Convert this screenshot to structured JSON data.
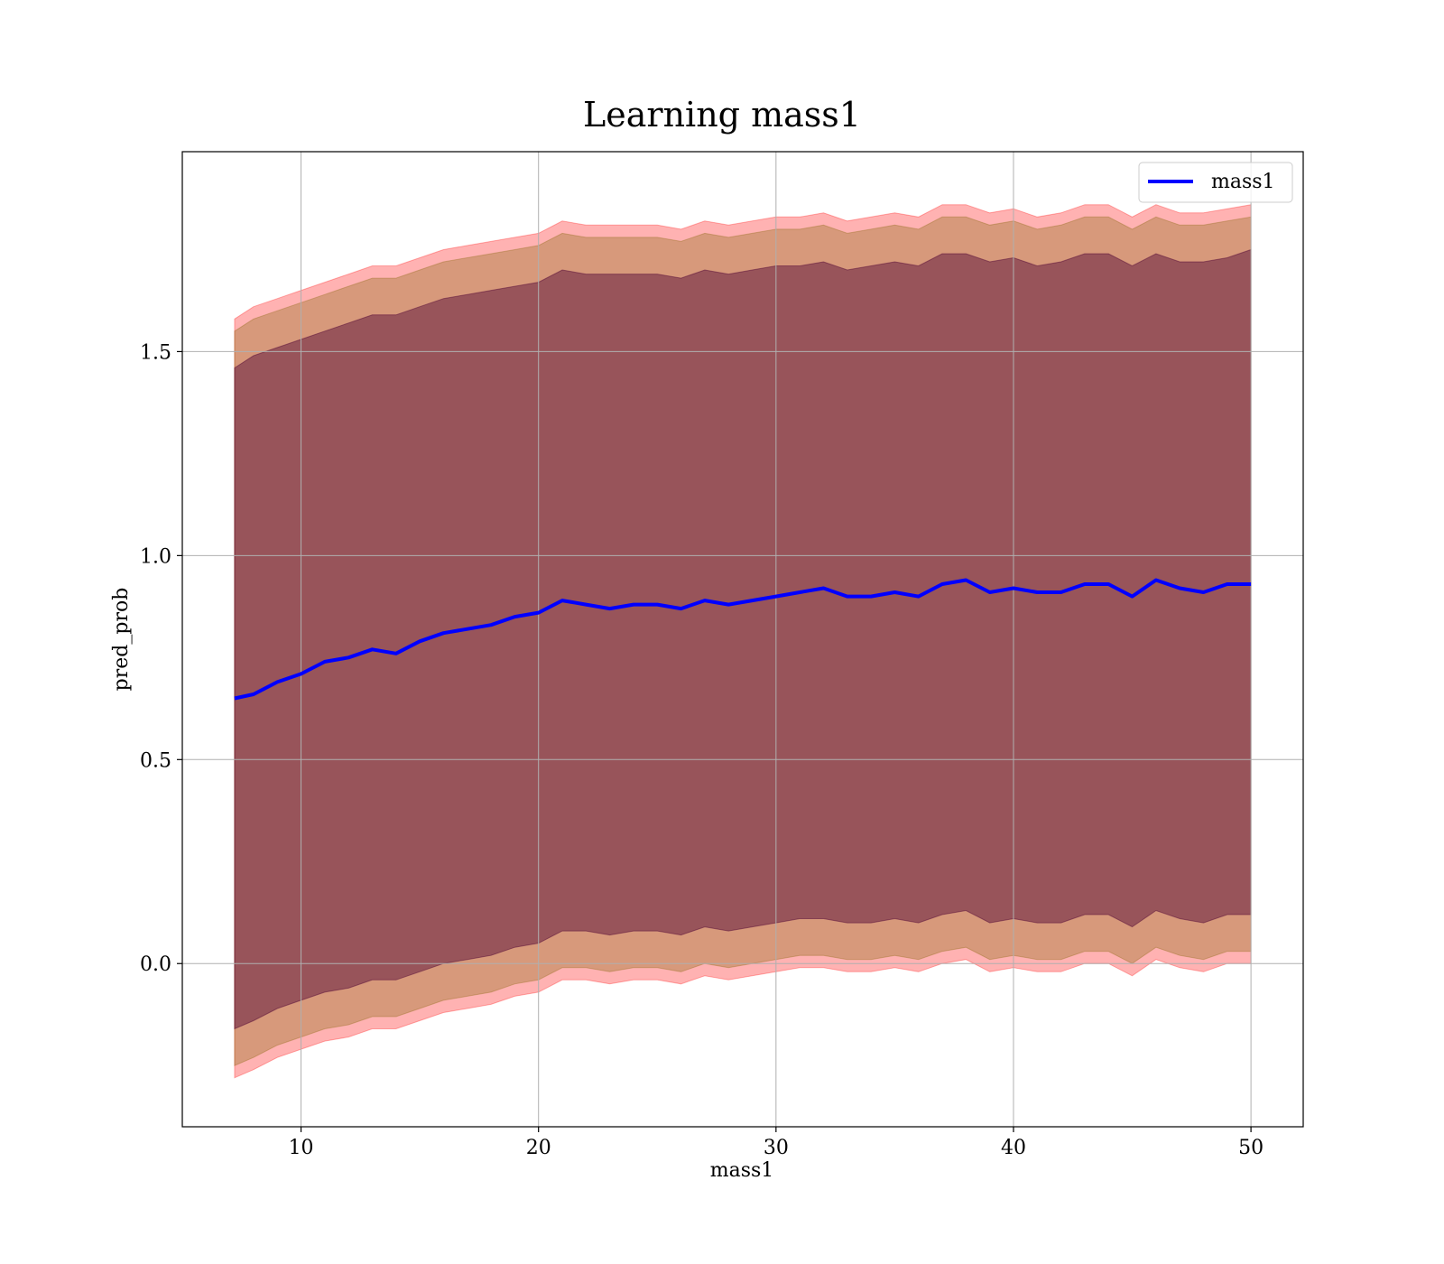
{
  "chart_data": {
    "type": "line",
    "title": "Learning mass1",
    "xlabel": "mass1",
    "ylabel": "pred_prob",
    "xlim": [
      5.0,
      52.2
    ],
    "ylim": [
      -0.4,
      1.99
    ],
    "xticks": [
      10,
      20,
      30,
      40,
      50
    ],
    "yticks": [
      0.0,
      0.5,
      1.0,
      1.5
    ],
    "xtick_labels": [
      "10",
      "20",
      "30",
      "40",
      "50"
    ],
    "ytick_labels": [
      "0.0",
      "0.5",
      "1.0",
      "1.5"
    ],
    "grid": true,
    "legend_position": "top-right",
    "x": [
      7.2,
      8,
      9,
      10,
      11,
      12,
      13,
      14,
      15,
      16,
      17,
      18,
      19,
      20,
      21,
      22,
      23,
      24,
      25,
      26,
      27,
      28,
      29,
      30,
      31,
      32,
      33,
      34,
      35,
      36,
      37,
      38,
      39,
      40,
      41,
      42,
      43,
      44,
      45,
      46,
      47,
      48,
      49,
      50
    ],
    "series": [
      {
        "name": "mass1",
        "color": "#0000ff",
        "values": [
          0.65,
          0.66,
          0.69,
          0.71,
          0.74,
          0.75,
          0.77,
          0.76,
          0.79,
          0.81,
          0.82,
          0.83,
          0.85,
          0.86,
          0.89,
          0.88,
          0.87,
          0.88,
          0.88,
          0.87,
          0.89,
          0.88,
          0.89,
          0.9,
          0.91,
          0.92,
          0.9,
          0.9,
          0.91,
          0.9,
          0.93,
          0.94,
          0.91,
          0.92,
          0.91,
          0.91,
          0.93,
          0.93,
          0.9,
          0.94,
          0.92,
          0.91,
          0.93,
          0.93
        ]
      }
    ],
    "bands": [
      {
        "color": "#ff0000",
        "opacity": 0.3,
        "upper": [
          1.58,
          1.61,
          1.63,
          1.65,
          1.67,
          1.69,
          1.71,
          1.71,
          1.73,
          1.75,
          1.76,
          1.77,
          1.78,
          1.79,
          1.82,
          1.81,
          1.81,
          1.81,
          1.81,
          1.8,
          1.82,
          1.81,
          1.82,
          1.83,
          1.83,
          1.84,
          1.82,
          1.83,
          1.84,
          1.83,
          1.86,
          1.86,
          1.84,
          1.85,
          1.83,
          1.84,
          1.86,
          1.86,
          1.83,
          1.86,
          1.84,
          1.84,
          1.85,
          1.86
        ],
        "lower": [
          -0.28,
          -0.26,
          -0.23,
          -0.21,
          -0.19,
          -0.18,
          -0.16,
          -0.16,
          -0.14,
          -0.12,
          -0.11,
          -0.1,
          -0.08,
          -0.07,
          -0.04,
          -0.04,
          -0.05,
          -0.04,
          -0.04,
          -0.05,
          -0.03,
          -0.04,
          -0.03,
          -0.02,
          -0.01,
          -0.01,
          -0.02,
          -0.02,
          -0.01,
          -0.02,
          0.0,
          0.01,
          -0.02,
          -0.01,
          -0.02,
          -0.02,
          0.0,
          0.0,
          -0.03,
          0.01,
          -0.01,
          -0.02,
          0.0,
          0.0
        ]
      },
      {
        "color": "#8b6914",
        "opacity": 0.35,
        "upper": [
          1.55,
          1.58,
          1.6,
          1.62,
          1.64,
          1.66,
          1.68,
          1.68,
          1.7,
          1.72,
          1.73,
          1.74,
          1.75,
          1.76,
          1.79,
          1.78,
          1.78,
          1.78,
          1.78,
          1.77,
          1.79,
          1.78,
          1.79,
          1.8,
          1.8,
          1.81,
          1.79,
          1.8,
          1.81,
          1.8,
          1.83,
          1.83,
          1.81,
          1.82,
          1.8,
          1.81,
          1.83,
          1.83,
          1.8,
          1.83,
          1.81,
          1.81,
          1.82,
          1.83
        ],
        "lower": [
          -0.25,
          -0.23,
          -0.2,
          -0.18,
          -0.16,
          -0.15,
          -0.13,
          -0.13,
          -0.11,
          -0.09,
          -0.08,
          -0.07,
          -0.05,
          -0.04,
          -0.01,
          -0.01,
          -0.02,
          -0.01,
          -0.01,
          -0.02,
          0.0,
          -0.01,
          0.0,
          0.01,
          0.02,
          0.02,
          0.01,
          0.01,
          0.02,
          0.01,
          0.03,
          0.04,
          0.01,
          0.02,
          0.01,
          0.01,
          0.03,
          0.03,
          0.0,
          0.04,
          0.02,
          0.01,
          0.03,
          0.03
        ]
      },
      {
        "color": "#4b0033",
        "opacity": 0.45,
        "upper": [
          1.46,
          1.49,
          1.51,
          1.53,
          1.55,
          1.57,
          1.59,
          1.59,
          1.61,
          1.63,
          1.64,
          1.65,
          1.66,
          1.67,
          1.7,
          1.69,
          1.69,
          1.69,
          1.69,
          1.68,
          1.7,
          1.69,
          1.7,
          1.71,
          1.71,
          1.72,
          1.7,
          1.71,
          1.72,
          1.71,
          1.74,
          1.74,
          1.72,
          1.73,
          1.71,
          1.72,
          1.74,
          1.74,
          1.71,
          1.74,
          1.72,
          1.72,
          1.73,
          1.75
        ],
        "lower": [
          -0.16,
          -0.14,
          -0.11,
          -0.09,
          -0.07,
          -0.06,
          -0.04,
          -0.04,
          -0.02,
          0.0,
          0.01,
          0.02,
          0.04,
          0.05,
          0.08,
          0.08,
          0.07,
          0.08,
          0.08,
          0.07,
          0.09,
          0.08,
          0.09,
          0.1,
          0.11,
          0.11,
          0.1,
          0.1,
          0.11,
          0.1,
          0.12,
          0.13,
          0.1,
          0.11,
          0.1,
          0.1,
          0.12,
          0.12,
          0.09,
          0.13,
          0.11,
          0.1,
          0.12,
          0.12
        ]
      }
    ]
  }
}
